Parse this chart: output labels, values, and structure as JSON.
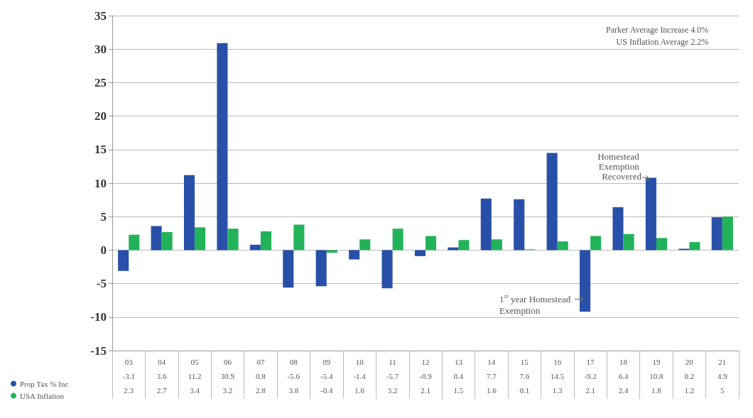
{
  "chart_data": {
    "type": "bar",
    "categories": [
      "03",
      "04",
      "05",
      "06",
      "07",
      "08",
      "09",
      "10",
      "11",
      "12",
      "13",
      "14",
      "15",
      "16",
      "17",
      "18",
      "19",
      "20",
      "21"
    ],
    "series": [
      {
        "name": "Prop Tax % Inc",
        "color": "#2850a8",
        "values": [
          -3.1,
          3.6,
          11.2,
          30.9,
          0.8,
          -5.6,
          -5.4,
          -1.4,
          -5.7,
          -0.9,
          0.4,
          7.7,
          7.6,
          14.5,
          -9.2,
          6.4,
          10.8,
          0.2,
          4.9
        ]
      },
      {
        "name": "USA Inflation",
        "color": "#22b35a",
        "values": [
          2.3,
          2.7,
          3.4,
          3.2,
          2.8,
          3.8,
          -0.4,
          1.6,
          3.2,
          2.1,
          1.5,
          1.6,
          0.1,
          1.3,
          2.1,
          2.4,
          1.8,
          1.2,
          5
        ]
      }
    ],
    "ylim": [
      -15,
      35
    ],
    "yticks": [
      -15,
      -10,
      -5,
      0,
      5,
      10,
      15,
      20,
      25,
      30,
      35
    ],
    "grid": "y",
    "legend": "bottom left",
    "data_labels": true,
    "annotations": [
      "Parker Average Increase 4.0%",
      "US Inflation Average 2.2%",
      {
        "text": "1$^{st}$ year Homestead Exemption",
        "x": "17",
        "y": -9.2
      },
      {
        "text": "Homestead Exemption Recovered",
        "x": "19",
        "y": 10.8
      }
    ]
  }
}
